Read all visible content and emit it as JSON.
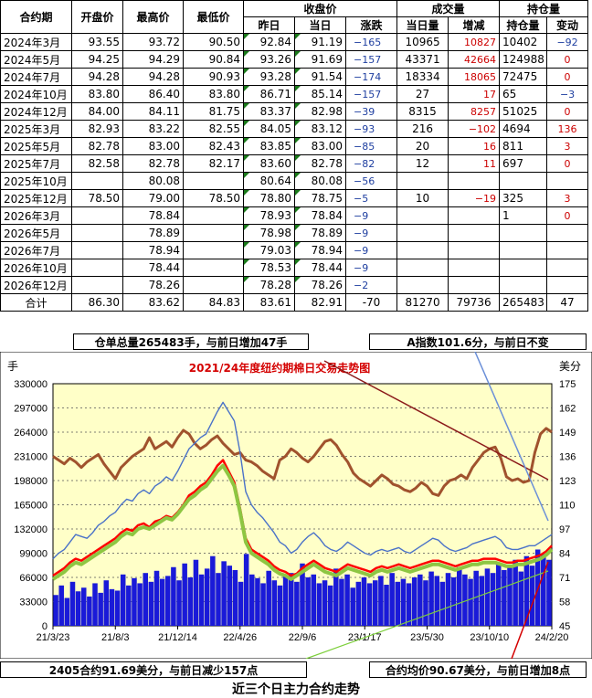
{
  "table": {
    "headers_top": {
      "contract": "合约期",
      "open": "开盘价",
      "high": "最高价",
      "low": "最低价",
      "settle_group": "收盘价",
      "volume_group": "成交量",
      "oi_group": "持仓量"
    },
    "headers_sub": {
      "prev": "昨日",
      "today": "当日",
      "change": "涨跌",
      "vol_today": "当日量",
      "vol_inc": "增减",
      "oi": "持仓量",
      "oi_change": "变动"
    },
    "rows": [
      {
        "contract": "2024年3月",
        "open": "93.55",
        "high": "93.72",
        "low": "90.50",
        "prev": "92.84",
        "today": "91.19",
        "change": "−165",
        "vol": "10965",
        "inc": "10827",
        "oi": "10402",
        "oichg": "−92"
      },
      {
        "contract": "2024年5月",
        "open": "94.25",
        "high": "94.29",
        "low": "90.84",
        "prev": "93.26",
        "today": "91.69",
        "change": "−157",
        "vol": "43371",
        "inc": "42664",
        "oi": "124988",
        "oichg": "0"
      },
      {
        "contract": "2024年7月",
        "open": "94.28",
        "high": "94.28",
        "low": "90.93",
        "prev": "93.28",
        "today": "91.54",
        "change": "−174",
        "vol": "18334",
        "inc": "18065",
        "oi": "72475",
        "oichg": "0"
      },
      {
        "contract": "2024年10月",
        "open": "83.80",
        "high": "86.40",
        "low": "83.80",
        "prev": "86.71",
        "today": "85.14",
        "change": "−157",
        "vol": "27",
        "inc": "17",
        "oi": "65",
        "oichg": "−3"
      },
      {
        "contract": "2024年12月",
        "open": "84.00",
        "high": "84.11",
        "low": "81.75",
        "prev": "83.37",
        "today": "82.98",
        "change": "−39",
        "vol": "8315",
        "inc": "8257",
        "oi": "51025",
        "oichg": "0"
      },
      {
        "contract": "2025年3月",
        "open": "82.93",
        "high": "83.22",
        "low": "82.55",
        "prev": "84.05",
        "today": "83.12",
        "change": "−93",
        "vol": "216",
        "inc": "−102",
        "oi": "4694",
        "oichg": "136"
      },
      {
        "contract": "2025年5月",
        "open": "82.78",
        "high": "83.00",
        "low": "82.43",
        "prev": "83.85",
        "today": "83.00",
        "change": "−85",
        "vol": "20",
        "inc": "16",
        "oi": "811",
        "oichg": "3"
      },
      {
        "contract": "2025年7月",
        "open": "82.58",
        "high": "82.78",
        "low": "82.17",
        "prev": "83.60",
        "today": "82.78",
        "change": "−82",
        "vol": "12",
        "inc": "11",
        "oi": "697",
        "oichg": "0"
      },
      {
        "contract": "2025年10月",
        "open": "",
        "high": "80.08",
        "low": "",
        "prev": "80.64",
        "today": "80.08",
        "change": "−56",
        "vol": "",
        "inc": "",
        "oi": "",
        "oichg": ""
      },
      {
        "contract": "2025年12月",
        "open": "78.50",
        "high": "79.00",
        "low": "78.50",
        "prev": "78.80",
        "today": "78.75",
        "change": "−5",
        "vol": "10",
        "inc": "−19",
        "oi": "325",
        "oichg": "3"
      },
      {
        "contract": "2026年3月",
        "open": "",
        "high": "78.84",
        "low": "",
        "prev": "78.93",
        "today": "78.84",
        "change": "−9",
        "vol": "",
        "inc": "",
        "oi": "1",
        "oichg": "0"
      },
      {
        "contract": "2026年5月",
        "open": "",
        "high": "78.89",
        "low": "",
        "prev": "78.98",
        "today": "78.89",
        "change": "−9",
        "vol": "",
        "inc": "",
        "oi": "",
        "oichg": ""
      },
      {
        "contract": "2026年7月",
        "open": "",
        "high": "78.94",
        "low": "",
        "prev": "79.03",
        "today": "78.94",
        "change": "−9",
        "vol": "",
        "inc": "",
        "oi": "",
        "oichg": ""
      },
      {
        "contract": "2026年10月",
        "open": "",
        "high": "78.44",
        "low": "",
        "prev": "78.53",
        "today": "78.44",
        "change": "−9",
        "vol": "",
        "inc": "",
        "oi": "",
        "oichg": ""
      },
      {
        "contract": "2026年12月",
        "open": "",
        "high": "78.26",
        "low": "",
        "prev": "78.28",
        "today": "78.26",
        "change": "−2",
        "vol": "",
        "inc": "",
        "oi": "",
        "oichg": ""
      }
    ],
    "total": {
      "label": "合计",
      "open": "86.30",
      "high": "83.62",
      "low": "84.83",
      "prev": "83.61",
      "today": "82.91",
      "change": "-70",
      "vol": "81270",
      "inc": "79736",
      "oi": "265483",
      "oichg": "47"
    }
  },
  "notes": {
    "warehouse": "仓单总量265483手，与前日增加47手",
    "a_index": "A指数101.6分，与前日不变",
    "contract_2405": "2405合约91.69美分，与前日减少157点",
    "avg_price": "合约均价90.67美分，与前日增加8点"
  },
  "footer": "近三个日主力合约走势",
  "chart_data": {
    "type": "line",
    "title": "2021/24年度纽约期棉日交易走势图",
    "left_unit": "手",
    "right_unit": "美分",
    "ylim_left": [
      0,
      330000
    ],
    "yticks_left": [
      0,
      33000,
      66000,
      99000,
      132000,
      165000,
      198000,
      231000,
      264000,
      297000,
      330000
    ],
    "ylim_right": [
      45,
      175
    ],
    "yticks_right": [
      45,
      58,
      71,
      84,
      97,
      110,
      123,
      136,
      149,
      162,
      175
    ],
    "x_ticks": [
      "21/3/23",
      "21/8/3",
      "21/12/14",
      "22/4/26",
      "22/9/6",
      "23/1/17",
      "23/5/30",
      "23/10/10",
      "24/2/20"
    ],
    "bg_color": "#ffffc8",
    "series": [
      {
        "color": "#a0522d",
        "axis": "right",
        "values": [
          136,
          134,
          132,
          135,
          133,
          130,
          133,
          135,
          137,
          132,
          128,
          124,
          130,
          133,
          136,
          138,
          140,
          146,
          140,
          142,
          144,
          141,
          146,
          150,
          148,
          143,
          140,
          142,
          145,
          147,
          143,
          140,
          137,
          138,
          134,
          133,
          131,
          128,
          126,
          124,
          134,
          136,
          140,
          138,
          135,
          133,
          136,
          140,
          144,
          145,
          142,
          137,
          133,
          127,
          124,
          122,
          120,
          123,
          126,
          124,
          121,
          120,
          118,
          117,
          119,
          122,
          120,
          116,
          115,
          120,
          123,
          124,
          126,
          124,
          130,
          134,
          138,
          140,
          141,
          135,
          125,
          123,
          124,
          122,
          123,
          138,
          148,
          151,
          149
        ]
      },
      {
        "color": "#4a72c8",
        "axis": "right",
        "values": [
          81,
          84,
          86,
          90,
          94,
          93,
          92,
          95,
          99,
          101,
          104,
          106,
          110,
          113,
          112,
          116,
          118,
          116,
          120,
          122,
          125,
          123,
          128,
          134,
          140,
          143,
          146,
          148,
          154,
          160,
          165,
          160,
          155,
          138,
          117,
          110,
          106,
          103,
          99,
          95,
          90,
          88,
          84,
          86,
          90,
          93,
          95,
          92,
          88,
          86,
          85,
          87,
          90,
          88,
          86,
          84,
          83,
          85,
          86,
          85,
          86,
          87,
          85,
          84,
          86,
          88,
          90,
          92,
          91,
          88,
          86,
          85,
          86,
          87,
          89,
          90,
          91,
          92,
          93,
          91,
          87,
          86,
          86,
          87,
          88,
          88,
          90,
          92,
          94
        ]
      },
      {
        "color": "#ff0000",
        "axis": "right",
        "values": [
          72,
          74,
          76,
          79,
          81,
          80,
          82,
          84,
          86,
          88,
          90,
          92,
          95,
          97,
          96,
          99,
          100,
          98,
          101,
          102,
          104,
          103,
          106,
          110,
          115,
          117,
          120,
          122,
          126,
          131,
          134,
          128,
          122,
          108,
          92,
          86,
          84,
          82,
          80,
          77,
          75,
          74,
          72,
          73,
          76,
          78,
          80,
          78,
          76,
          75,
          74,
          76,
          78,
          77,
          76,
          75,
          74,
          76,
          77,
          76,
          77,
          78,
          77,
          76,
          77,
          78,
          79,
          80,
          80,
          79,
          78,
          77,
          78,
          79,
          80,
          80,
          81,
          81,
          81,
          80,
          79,
          79,
          80,
          80,
          81,
          82,
          83,
          85,
          88
        ]
      },
      {
        "color": "#8dc642",
        "axis": "right",
        "values": [
          70,
          72,
          74,
          77,
          79,
          78,
          80,
          82,
          84,
          86,
          88,
          90,
          93,
          95,
          94,
          97,
          98,
          97,
          99,
          101,
          103,
          102,
          105,
          109,
          113,
          115,
          118,
          120,
          124,
          128,
          131,
          126,
          120,
          106,
          90,
          84,
          82,
          80,
          78,
          75,
          73,
          72,
          70,
          72,
          74,
          76,
          78,
          76,
          74,
          73,
          72,
          74,
          76,
          75,
          74,
          73,
          72,
          74,
          75,
          74,
          75,
          76,
          75,
          74,
          75,
          76,
          77,
          78,
          78,
          77,
          76,
          75,
          76,
          77,
          78,
          78,
          79,
          79,
          79,
          78,
          77,
          77,
          78,
          78,
          79,
          80,
          81,
          83,
          86
        ]
      }
    ],
    "volume_color": "#1a1ad8",
    "volume": [
      42000,
      55000,
      38000,
      60000,
      47000,
      52000,
      40000,
      58000,
      45000,
      62000,
      50000,
      48000,
      70000,
      55000,
      65000,
      58000,
      72000,
      60000,
      75000,
      64000,
      68000,
      80000,
      62000,
      85000,
      66000,
      90000,
      70000,
      78000,
      95000,
      72000,
      88000,
      82000,
      76000,
      60000,
      98000,
      70000,
      65000,
      58000,
      75000,
      62000,
      55000,
      68000,
      72000,
      60000,
      85000,
      66000,
      70000,
      58000,
      62000,
      55000,
      78000,
      64000,
      70000,
      52000,
      60000,
      66000,
      58000,
      62000,
      68000,
      56000,
      72000,
      60000,
      64000,
      58000,
      66000,
      70000,
      62000,
      74000,
      68000,
      60000,
      72000,
      66000,
      80000,
      70000,
      64000,
      75000,
      68000,
      78000,
      72000,
      86000,
      76000,
      80000,
      90000,
      74000,
      95000,
      82000,
      104000,
      98000,
      90000
    ]
  }
}
